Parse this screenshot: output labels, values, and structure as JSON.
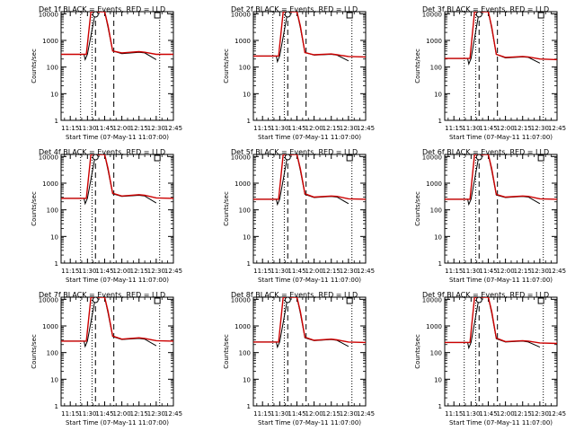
{
  "title_suffix": "BLACK = Events, RED = LLD",
  "ylabel": "Counts/sec",
  "xlabel": "Start Time (07-May-11 11:07:00)",
  "colors": {
    "events": "#000000",
    "lld": "#cc0000"
  },
  "chart_data": [
    {
      "type": "line",
      "title": "Det 1f",
      "xlabel": "Start Time (07-May-11 11:07:00)",
      "ylabel": "Counts/sec",
      "yscale": "log",
      "ylim": [
        1,
        12000
      ],
      "xlim": [
        "11:07",
        "12:45"
      ],
      "x_ticks": [
        "11:15",
        "11:30",
        "11:45",
        "12:00",
        "12:15",
        "12:30",
        "12:45"
      ],
      "y_ticks": [
        "1",
        "10",
        "100",
        "1000",
        "10000"
      ],
      "dotted_lines": [
        "11:24",
        "11:34",
        "12:33"
      ],
      "dashed_lines": [
        "11:37",
        "11:53"
      ],
      "markers": [
        {
          "type": "circle",
          "time": "11:37"
        },
        {
          "type": "square",
          "time": "12:31"
        }
      ],
      "series": [
        {
          "name": "Events",
          "color": "#000000",
          "x": [
            "11:07",
            "11:27",
            "11:28",
            "11:30",
            "11:37",
            "11:45",
            "11:48",
            "11:52",
            "12:00",
            "12:15",
            "12:20",
            "12:30"
          ],
          "y": [
            300,
            300,
            190,
            300,
            12000,
            12000,
            3000,
            400,
            320,
            360,
            340,
            190
          ]
        },
        {
          "name": "LLD",
          "color": "#cc0000",
          "x": [
            "11:07",
            "11:29",
            "11:33",
            "11:37",
            "11:45",
            "11:48",
            "11:52",
            "12:00",
            "12:15",
            "12:20",
            "12:30",
            "12:45"
          ],
          "y": [
            300,
            300,
            12000,
            12000,
            12000,
            3500,
            400,
            340,
            380,
            360,
            300,
            300
          ]
        }
      ]
    },
    {
      "type": "line",
      "title": "Det 2f",
      "xlabel": "Start Time (07-May-11 11:07:00)",
      "ylabel": "Counts/sec",
      "yscale": "log",
      "ylim": [
        1,
        12000
      ],
      "xlim": [
        "11:07",
        "12:45"
      ],
      "x_ticks": [
        "11:15",
        "11:30",
        "11:45",
        "12:00",
        "12:15",
        "12:30",
        "12:45"
      ],
      "y_ticks": [
        "1",
        "10",
        "100",
        "1000",
        "10000"
      ],
      "dotted_lines": [
        "11:24",
        "11:34",
        "12:33"
      ],
      "dashed_lines": [
        "11:37",
        "11:53"
      ],
      "markers": [
        {
          "type": "circle",
          "time": "11:37"
        },
        {
          "type": "square",
          "time": "12:31"
        }
      ],
      "series": [
        {
          "name": "Events",
          "color": "#000000",
          "x": [
            "11:07",
            "11:27",
            "11:28",
            "11:30",
            "11:37",
            "11:45",
            "11:48",
            "11:52",
            "12:00",
            "12:15",
            "12:20",
            "12:30"
          ],
          "y": [
            260,
            260,
            160,
            260,
            12000,
            12000,
            3000,
            350,
            280,
            300,
            280,
            170
          ]
        },
        {
          "name": "LLD",
          "color": "#cc0000",
          "x": [
            "11:07",
            "11:29",
            "11:33",
            "11:37",
            "11:45",
            "11:48",
            "11:52",
            "12:00",
            "12:15",
            "12:20",
            "12:30",
            "12:45"
          ],
          "y": [
            260,
            260,
            12000,
            12000,
            12000,
            3500,
            350,
            290,
            310,
            290,
            250,
            240
          ]
        }
      ]
    },
    {
      "type": "line",
      "title": "Det 3f",
      "xlabel": "Start Time (07-May-11 11:07:00)",
      "ylabel": "Counts/sec",
      "yscale": "log",
      "ylim": [
        1,
        12000
      ],
      "xlim": [
        "11:07",
        "12:45"
      ],
      "x_ticks": [
        "11:15",
        "11:30",
        "11:45",
        "12:00",
        "12:15",
        "12:30",
        "12:45"
      ],
      "y_ticks": [
        "1",
        "10",
        "100",
        "1000",
        "10000"
      ],
      "dotted_lines": [
        "11:24",
        "11:34",
        "12:33"
      ],
      "dashed_lines": [
        "11:37",
        "11:53"
      ],
      "markers": [
        {
          "type": "circle",
          "time": "11:37"
        },
        {
          "type": "square",
          "time": "12:31"
        }
      ],
      "series": [
        {
          "name": "Events",
          "color": "#000000",
          "x": [
            "11:07",
            "11:27",
            "11:28",
            "11:30",
            "11:37",
            "11:45",
            "11:48",
            "11:52",
            "12:00",
            "12:15",
            "12:20",
            "12:30"
          ],
          "y": [
            210,
            210,
            130,
            210,
            12000,
            12000,
            2800,
            300,
            220,
            240,
            230,
            140
          ]
        },
        {
          "name": "LLD",
          "color": "#cc0000",
          "x": [
            "11:07",
            "11:29",
            "11:33",
            "11:37",
            "11:45",
            "11:48",
            "11:52",
            "12:00",
            "12:15",
            "12:20",
            "12:30",
            "12:45"
          ],
          "y": [
            210,
            210,
            12000,
            12000,
            12000,
            3200,
            300,
            230,
            250,
            240,
            200,
            190
          ]
        }
      ]
    },
    {
      "type": "line",
      "title": "Det 4f",
      "xlabel": "Start Time (07-May-11 11:07:00)",
      "ylabel": "Counts/sec",
      "yscale": "log",
      "ylim": [
        1,
        12000
      ],
      "xlim": [
        "11:07",
        "12:45"
      ],
      "x_ticks": [
        "11:15",
        "11:30",
        "11:45",
        "12:00",
        "12:15",
        "12:30",
        "12:45"
      ],
      "y_ticks": [
        "1",
        "10",
        "100",
        "1000",
        "10000"
      ],
      "dotted_lines": [
        "11:24",
        "11:34",
        "12:33"
      ],
      "dashed_lines": [
        "11:37",
        "11:53"
      ],
      "markers": [
        {
          "type": "circle",
          "time": "11:37"
        },
        {
          "type": "square",
          "time": "12:31"
        }
      ],
      "series": [
        {
          "name": "Events",
          "color": "#000000",
          "x": [
            "11:07",
            "11:27",
            "11:28",
            "11:30",
            "11:37",
            "11:45",
            "11:48",
            "11:52",
            "12:00",
            "12:15",
            "12:20",
            "12:30"
          ],
          "y": [
            270,
            270,
            170,
            270,
            12000,
            12000,
            3000,
            400,
            320,
            350,
            330,
            180
          ]
        },
        {
          "name": "LLD",
          "color": "#cc0000",
          "x": [
            "11:07",
            "11:29",
            "11:33",
            "11:37",
            "11:45",
            "11:48",
            "11:52",
            "12:00",
            "12:15",
            "12:20",
            "12:30",
            "12:45"
          ],
          "y": [
            270,
            270,
            12000,
            12000,
            12000,
            3500,
            420,
            330,
            370,
            350,
            280,
            270
          ]
        }
      ]
    },
    {
      "type": "line",
      "title": "Det 5f",
      "xlabel": "Start Time (07-May-11 11:07:00)",
      "ylabel": "Counts/sec",
      "yscale": "log",
      "ylim": [
        1,
        12000
      ],
      "xlim": [
        "11:07",
        "12:45"
      ],
      "x_ticks": [
        "11:15",
        "11:30",
        "11:45",
        "12:00",
        "12:15",
        "12:30",
        "12:45"
      ],
      "y_ticks": [
        "1",
        "10",
        "100",
        "1000",
        "10000"
      ],
      "dotted_lines": [
        "11:24",
        "11:34",
        "12:33"
      ],
      "dashed_lines": [
        "11:37",
        "11:53"
      ],
      "markers": [
        {
          "type": "circle",
          "time": "11:37"
        },
        {
          "type": "square",
          "time": "12:31"
        }
      ],
      "series": [
        {
          "name": "Events",
          "color": "#000000",
          "x": [
            "11:07",
            "11:27",
            "11:28",
            "11:30",
            "11:37",
            "11:45",
            "11:48",
            "11:52",
            "12:00",
            "12:15",
            "12:20",
            "12:30"
          ],
          "y": [
            250,
            250,
            160,
            250,
            12000,
            12000,
            3000,
            380,
            290,
            320,
            300,
            170
          ]
        },
        {
          "name": "LLD",
          "color": "#cc0000",
          "x": [
            "11:07",
            "11:29",
            "11:33",
            "11:37",
            "11:45",
            "11:48",
            "11:52",
            "12:00",
            "12:15",
            "12:20",
            "12:30",
            "12:45"
          ],
          "y": [
            250,
            250,
            12000,
            12000,
            12000,
            3500,
            400,
            300,
            330,
            320,
            260,
            250
          ]
        }
      ]
    },
    {
      "type": "line",
      "title": "Det 6f",
      "xlabel": "Start Time (07-May-11 11:07:00)",
      "ylabel": "Counts/sec",
      "yscale": "log",
      "ylim": [
        1,
        12000
      ],
      "xlim": [
        "11:07",
        "12:45"
      ],
      "x_ticks": [
        "11:15",
        "11:30",
        "11:45",
        "12:00",
        "12:15",
        "12:30",
        "12:45"
      ],
      "y_ticks": [
        "1",
        "10",
        "100",
        "1000",
        "10000"
      ],
      "dotted_lines": [
        "11:24",
        "11:34",
        "12:33"
      ],
      "dashed_lines": [
        "11:37",
        "11:53"
      ],
      "markers": [
        {
          "type": "circle",
          "time": "11:37"
        },
        {
          "type": "square",
          "time": "12:31"
        }
      ],
      "series": [
        {
          "name": "Events",
          "color": "#000000",
          "x": [
            "11:07",
            "11:27",
            "11:28",
            "11:30",
            "11:37",
            "11:45",
            "11:48",
            "11:52",
            "12:00",
            "12:15",
            "12:20",
            "12:30"
          ],
          "y": [
            250,
            250,
            160,
            250,
            12000,
            12000,
            3000,
            360,
            290,
            320,
            300,
            170
          ]
        },
        {
          "name": "LLD",
          "color": "#cc0000",
          "x": [
            "11:07",
            "11:29",
            "11:33",
            "11:37",
            "11:45",
            "11:48",
            "11:52",
            "12:00",
            "12:15",
            "12:20",
            "12:30",
            "12:45"
          ],
          "y": [
            250,
            250,
            12000,
            12000,
            12000,
            3500,
            380,
            300,
            330,
            320,
            260,
            250
          ]
        }
      ]
    },
    {
      "type": "line",
      "title": "Det 7f",
      "xlabel": "Start Time (07-May-11 11:07:00)",
      "ylabel": "Counts/sec",
      "yscale": "log",
      "ylim": [
        1,
        12000
      ],
      "xlim": [
        "11:07",
        "12:45"
      ],
      "x_ticks": [
        "11:15",
        "11:30",
        "11:45",
        "12:00",
        "12:15",
        "12:30",
        "12:45"
      ],
      "y_ticks": [
        "1",
        "10",
        "100",
        "1000",
        "10000"
      ],
      "dotted_lines": [
        "11:24",
        "11:34",
        "12:33"
      ],
      "dashed_lines": [
        "11:37",
        "11:53"
      ],
      "markers": [
        {
          "type": "circle",
          "time": "11:37"
        },
        {
          "type": "square",
          "time": "12:31"
        }
      ],
      "series": [
        {
          "name": "Events",
          "color": "#000000",
          "x": [
            "11:07",
            "11:27",
            "11:28",
            "11:30",
            "11:37",
            "11:45",
            "11:48",
            "11:52",
            "12:00",
            "12:15",
            "12:20",
            "12:30"
          ],
          "y": [
            270,
            270,
            170,
            270,
            12000,
            12000,
            3000,
            400,
            310,
            340,
            320,
            180
          ]
        },
        {
          "name": "LLD",
          "color": "#cc0000",
          "x": [
            "11:07",
            "11:29",
            "11:33",
            "11:37",
            "11:45",
            "11:48",
            "11:52",
            "12:00",
            "12:15",
            "12:20",
            "12:30",
            "12:45"
          ],
          "y": [
            270,
            270,
            12000,
            12000,
            12000,
            3500,
            420,
            320,
            360,
            340,
            280,
            270
          ]
        }
      ]
    },
    {
      "type": "line",
      "title": "Det 8f",
      "xlabel": "Start Time (07-May-11 11:07:00)",
      "ylabel": "Counts/sec",
      "yscale": "log",
      "ylim": [
        1,
        12000
      ],
      "xlim": [
        "11:07",
        "12:45"
      ],
      "x_ticks": [
        "11:15",
        "11:30",
        "11:45",
        "12:00",
        "12:15",
        "12:30",
        "12:45"
      ],
      "y_ticks": [
        "1",
        "10",
        "100",
        "1000",
        "10000"
      ],
      "dotted_lines": [
        "11:24",
        "11:34",
        "12:33"
      ],
      "dashed_lines": [
        "11:37",
        "11:53"
      ],
      "markers": [
        {
          "type": "circle",
          "time": "11:37"
        },
        {
          "type": "square",
          "time": "12:31"
        }
      ],
      "series": [
        {
          "name": "Events",
          "color": "#000000",
          "x": [
            "11:07",
            "11:27",
            "11:28",
            "11:30",
            "11:37",
            "11:45",
            "11:48",
            "11:52",
            "12:00",
            "12:15",
            "12:20",
            "12:30"
          ],
          "y": [
            250,
            250,
            160,
            250,
            12000,
            12000,
            3000,
            360,
            280,
            310,
            290,
            170
          ]
        },
        {
          "name": "LLD",
          "color": "#cc0000",
          "x": [
            "11:07",
            "11:29",
            "11:33",
            "11:37",
            "11:45",
            "11:48",
            "11:52",
            "12:00",
            "12:15",
            "12:20",
            "12:30",
            "12:45"
          ],
          "y": [
            250,
            250,
            12000,
            12000,
            12000,
            3500,
            380,
            290,
            320,
            300,
            250,
            240
          ]
        }
      ]
    },
    {
      "type": "line",
      "title": "Det 9f",
      "xlabel": "Start Time (07-May-11 11:07:00)",
      "ylabel": "Counts/sec",
      "yscale": "log",
      "ylim": [
        1,
        12000
      ],
      "xlim": [
        "11:07",
        "12:45"
      ],
      "x_ticks": [
        "11:15",
        "11:30",
        "11:45",
        "12:00",
        "12:15",
        "12:30",
        "12:45"
      ],
      "y_ticks": [
        "1",
        "10",
        "100",
        "1000",
        "10000"
      ],
      "dotted_lines": [
        "11:24",
        "11:34",
        "12:33"
      ],
      "dashed_lines": [
        "11:37",
        "11:53"
      ],
      "markers": [
        {
          "type": "circle",
          "time": "11:37"
        },
        {
          "type": "square",
          "time": "12:31"
        }
      ],
      "series": [
        {
          "name": "Events",
          "color": "#000000",
          "x": [
            "11:07",
            "11:27",
            "11:28",
            "11:30",
            "11:37",
            "11:45",
            "11:48",
            "11:52",
            "12:00",
            "12:15",
            "12:20",
            "12:30"
          ],
          "y": [
            240,
            240,
            150,
            240,
            12000,
            12000,
            3000,
            330,
            250,
            270,
            250,
            160
          ]
        },
        {
          "name": "LLD",
          "color": "#cc0000",
          "x": [
            "11:07",
            "11:29",
            "11:33",
            "11:37",
            "11:45",
            "11:48",
            "11:52",
            "12:00",
            "12:15",
            "12:20",
            "12:30",
            "12:45"
          ],
          "y": [
            240,
            240,
            12000,
            12000,
            12000,
            3500,
            350,
            260,
            280,
            270,
            230,
            220
          ]
        }
      ]
    }
  ]
}
